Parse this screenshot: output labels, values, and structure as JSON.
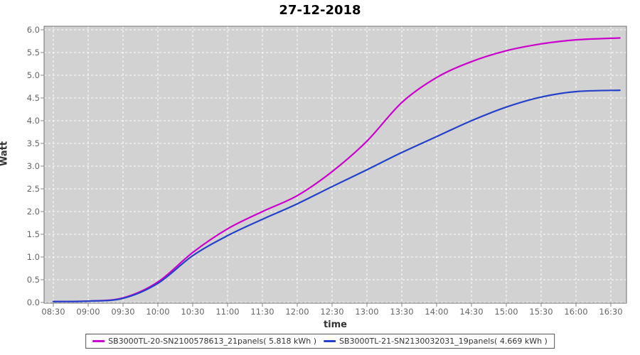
{
  "title": "27-12-2018",
  "colors": {
    "series1": "#CC00CC",
    "series2": "#2442C8",
    "plot_bg": "#D2D2D2",
    "grid": "#FFFFFF",
    "plot_border": "#6E6E6E",
    "tick_mark": "#888888",
    "tick_label": "#666666"
  },
  "chart_data": {
    "type": "line",
    "title": "27-12-2018",
    "xlabel": "time",
    "ylabel": "Watt",
    "ylim": [
      0.0,
      6.0
    ],
    "xlim_hours": [
      8.43,
      16.75
    ],
    "grid": true,
    "legend_position": "bottom",
    "y_ticks": [
      "0.0",
      "0.5",
      "1.0",
      "1.5",
      "2.0",
      "2.5",
      "3.0",
      "3.5",
      "4.0",
      "4.5",
      "5.0",
      "5.5",
      "6.0"
    ],
    "x_ticks": [
      "08:30",
      "09:00",
      "09:30",
      "10:00",
      "10:30",
      "11:00",
      "11:30",
      "12:00",
      "12:30",
      "13:00",
      "13:30",
      "14:00",
      "14:30",
      "15:00",
      "15:30",
      "16:00",
      "16:30"
    ],
    "x_hours": [
      8.5,
      9.0,
      9.5,
      10.0,
      10.5,
      11.0,
      11.5,
      12.0,
      12.5,
      13.0,
      13.5,
      14.0,
      14.5,
      15.0,
      15.5,
      16.0,
      16.63
    ],
    "series": [
      {
        "name": "SB3000TL-20-SN2100578613_21panels( 5.818 kWh )",
        "final_kwh": 5.818,
        "color": "#CC00CC",
        "values": [
          0.02,
          0.03,
          0.1,
          0.45,
          1.1,
          1.62,
          2.0,
          2.35,
          2.88,
          3.55,
          4.4,
          4.95,
          5.3,
          5.54,
          5.69,
          5.78,
          5.82
        ]
      },
      {
        "name": "SB3000TL-21-SN2130032031_19panels( 4.669 kWh )",
        "final_kwh": 4.669,
        "color": "#2442C8",
        "values": [
          0.02,
          0.03,
          0.09,
          0.42,
          1.03,
          1.47,
          1.83,
          2.17,
          2.55,
          2.92,
          3.3,
          3.65,
          4.0,
          4.3,
          4.52,
          4.64,
          4.67
        ]
      }
    ]
  }
}
